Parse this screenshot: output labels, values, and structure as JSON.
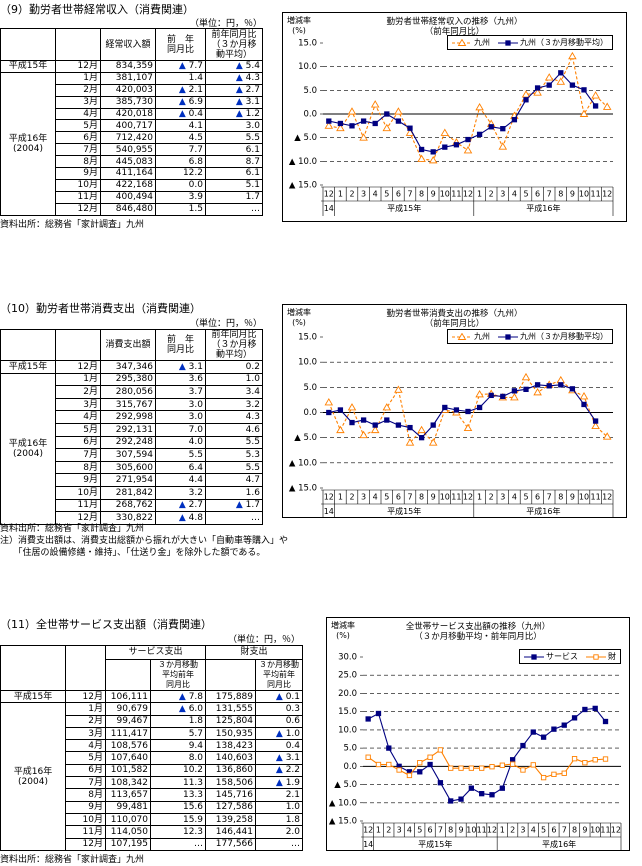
{
  "sections": [
    {
      "title": "（9）勤労者世帯経常収入（消費関連）",
      "unit": "（単位：円，％）",
      "table": {
        "headers": [
          "経常収入額",
          "前　年\n同月比",
          "前年同月比\n（３か月移\n動平均）"
        ],
        "groups": [
          {
            "label": "平成15年",
            "rows": [
              [
                "12月",
                "834,359",
                "▲ 7.7",
                "▲ 5.4"
              ]
            ]
          },
          {
            "label": "平成16年\n(2004)",
            "rows": [
              [
                "1月",
                "381,107",
                "1.4",
                "▲ 4.3"
              ],
              [
                "2月",
                "420,003",
                "▲ 2.1",
                "▲ 2.7"
              ],
              [
                "3月",
                "385,730",
                "▲ 6.9",
                "▲ 3.1"
              ],
              [
                "4月",
                "420,018",
                "▲ 0.4",
                "▲ 1.2"
              ],
              [
                "5月",
                "400,717",
                "4.1",
                "3.0"
              ],
              [
                "6月",
                "712,420",
                "4.5",
                "5.5"
              ],
              [
                "7月",
                "540,955",
                "7.7",
                "6.1"
              ],
              [
                "8月",
                "445,083",
                "6.8",
                "8.7"
              ],
              [
                "9月",
                "411,164",
                "12.2",
                "6.1"
              ],
              [
                "10月",
                "422,168",
                "0.0",
                "5.1"
              ],
              [
                "11月",
                "400,494",
                "3.9",
                "1.7"
              ],
              [
                "12月",
                "846,480",
                "1.5",
                "…"
              ]
            ]
          }
        ]
      },
      "source": "資料出所：総務省「家計調査」九州",
      "chart": {
        "type": "line",
        "title": "勤労者世帯経常収入の推移（九州）\n（前年同月比）",
        "y_label": "増減率\n(%)",
        "categories": [
          "12",
          "1",
          "2",
          "3",
          "4",
          "5",
          "6",
          "7",
          "8",
          "9",
          "10",
          "11",
          "12",
          "1",
          "2",
          "3",
          "4",
          "5",
          "6",
          "7",
          "8",
          "9",
          "10",
          "11",
          "12"
        ],
        "x_groups": [
          "14",
          "平成15年",
          "平成16年"
        ],
        "ylim": [
          -15,
          15
        ],
        "yticks": [
          {
            "value": 15,
            "label": "15.0"
          },
          {
            "value": 10,
            "label": "10.0"
          },
          {
            "value": 5,
            "label": "5.0"
          },
          {
            "value": 0,
            "label": "0.0"
          },
          {
            "value": -5,
            "label": "▲ 5.0"
          },
          {
            "value": -10,
            "label": "▲ 10.0"
          },
          {
            "value": -15,
            "label": "▲ 15.0"
          }
        ],
        "grid": true,
        "legend": "top-right",
        "series": [
          {
            "name": "九州",
            "color": "#ff8000",
            "marker": "triangle-open",
            "dashed": true,
            "values": [
              -2.5,
              -3,
              0.5,
              -5,
              2,
              -3,
              0.5,
              -4,
              -9.5,
              -9.8,
              -4,
              -6,
              -7.7,
              1.4,
              -2.1,
              -6.9,
              -0.4,
              4.1,
              4.5,
              7.7,
              6.8,
              12.2,
              0.0,
              3.9,
              1.5
            ]
          },
          {
            "name": "九州（３か月移動平均）",
            "color": "#000080",
            "marker": "square",
            "dashed": false,
            "values": [
              -1.5,
              -2,
              -2.5,
              -1.5,
              -2,
              0,
              -1.5,
              -3,
              -7.5,
              -8,
              -7,
              -6.5,
              -5.4,
              -4.3,
              -2.7,
              -3.1,
              -1.2,
              3.0,
              5.5,
              6.1,
              8.7,
              6.1,
              5.1,
              1.7,
              null
            ]
          }
        ]
      }
    },
    {
      "title": "（10）勤労者世帯消費支出（消費関連）",
      "unit": "（単位：円，％）",
      "table": {
        "headers": [
          "消費支出額",
          "前　年\n同月比",
          "前年同月比\n（３か月移\n動平均）"
        ],
        "groups": [
          {
            "label": "平成15年",
            "rows": [
              [
                "12月",
                "347,346",
                "▲ 3.1",
                "0.2"
              ]
            ]
          },
          {
            "label": "平成16年\n(2004)",
            "rows": [
              [
                "1月",
                "295,380",
                "3.6",
                "1.0"
              ],
              [
                "2月",
                "280,056",
                "3.7",
                "3.4"
              ],
              [
                "3月",
                "315,767",
                "3.0",
                "3.2"
              ],
              [
                "4月",
                "292,998",
                "3.0",
                "4.3"
              ],
              [
                "5月",
                "292,131",
                "7.0",
                "4.6"
              ],
              [
                "6月",
                "292,248",
                "4.0",
                "5.5"
              ],
              [
                "7月",
                "307,594",
                "5.5",
                "5.3"
              ],
              [
                "8月",
                "305,600",
                "6.4",
                "5.5"
              ],
              [
                "9月",
                "271,954",
                "4.4",
                "4.7"
              ],
              [
                "10月",
                "281,842",
                "3.2",
                "1.6"
              ],
              [
                "11月",
                "268,762",
                "▲ 2.7",
                "▲ 1.7"
              ],
              [
                "12月",
                "330,822",
                "▲ 4.8",
                "…"
              ]
            ]
          }
        ]
      },
      "source": "資料出所：総務省「家計調査」九州",
      "notes": [
        "注）消費支出額は、消費支出総額から振れが大きい「自動車等購入」や",
        "　　「住居の設備修繕・維持」、「仕送り金」を除外した額である。"
      ],
      "chart": {
        "type": "line",
        "title": "勤労者世帯消費支出の推移（九州）\n（前年同月比）",
        "y_label": "増減率\n(%)",
        "categories": [
          "12",
          "1",
          "2",
          "3",
          "4",
          "5",
          "6",
          "7",
          "8",
          "9",
          "10",
          "11",
          "12",
          "1",
          "2",
          "3",
          "4",
          "5",
          "6",
          "7",
          "8",
          "9",
          "10",
          "11",
          "12"
        ],
        "x_groups": [
          "14",
          "平成15年",
          "平成16年"
        ],
        "ylim": [
          -15,
          15
        ],
        "yticks": [
          {
            "value": 15,
            "label": "15.0"
          },
          {
            "value": 10,
            "label": "10.0"
          },
          {
            "value": 5,
            "label": "5.0"
          },
          {
            "value": 0,
            "label": "0.0"
          },
          {
            "value": -5,
            "label": "▲ 5.0"
          },
          {
            "value": -10,
            "label": "▲ 10.0"
          },
          {
            "value": -15,
            "label": "▲ 15.0"
          }
        ],
        "grid": true,
        "legend": "top-right",
        "series": [
          {
            "name": "九州",
            "color": "#ff8000",
            "marker": "triangle-open",
            "dashed": true,
            "values": [
              2,
              -3.5,
              1,
              -4.5,
              -3.5,
              1,
              4.5,
              -6,
              -3.5,
              -6,
              0.5,
              0,
              -3.1,
              3.6,
              3.7,
              3.0,
              3.0,
              7.0,
              4.0,
              5.5,
              6.4,
              4.4,
              3.2,
              -2.7,
              -4.8
            ]
          },
          {
            "name": "九州（３か月移動平均）",
            "color": "#000080",
            "marker": "square",
            "dashed": false,
            "values": [
              0,
              0.5,
              -2,
              -1.5,
              -2.5,
              -1.5,
              -2.5,
              -3,
              -5,
              -2.5,
              1,
              0.5,
              0.2,
              1.0,
              3.4,
              3.2,
              4.3,
              4.6,
              5.5,
              5.3,
              5.5,
              4.7,
              1.6,
              -1.7,
              null
            ]
          }
        ]
      }
    },
    {
      "title": "（11）全世帯サービス支出額（消費関連）",
      "unit": "（単位：円，％）",
      "table": {
        "header_groups": [
          {
            "name": "サービス支出",
            "sub": "３か月移動\n平均前年\n同月比"
          },
          {
            "name": "財支出",
            "sub": "３か月移動\n平均前年\n同月比"
          }
        ],
        "groups": [
          {
            "label": "平成15年",
            "rows": [
              [
                "12月",
                "106,111",
                "▲ 7.8",
                "175,889",
                "▲ 0.1"
              ]
            ]
          },
          {
            "label": "平成16年\n(2004)",
            "rows": [
              [
                "1月",
                "90,679",
                "▲ 6.0",
                "131,555",
                "0.3"
              ],
              [
                "2月",
                "99,467",
                "1.8",
                "125,804",
                "0.6"
              ],
              [
                "3月",
                "111,417",
                "5.7",
                "150,935",
                "▲ 1.0"
              ],
              [
                "4月",
                "108,576",
                "9.4",
                "138,423",
                "0.4"
              ],
              [
                "5月",
                "107,640",
                "8.0",
                "140,603",
                "▲ 3.1"
              ],
              [
                "6月",
                "101,582",
                "10.2",
                "136,860",
                "▲ 2.2"
              ],
              [
                "7月",
                "108,342",
                "11.3",
                "158,506",
                "▲ 1.9"
              ],
              [
                "8月",
                "113,657",
                "13.3",
                "145,716",
                "2.1"
              ],
              [
                "9月",
                "99,481",
                "15.6",
                "127,586",
                "1.0"
              ],
              [
                "10月",
                "110,070",
                "15.9",
                "139,258",
                "1.8"
              ],
              [
                "11月",
                "114,050",
                "12.3",
                "146,441",
                "2.0"
              ],
              [
                "12月",
                "107,195",
                "…",
                "177,566",
                "…"
              ]
            ]
          }
        ]
      },
      "source": "資料出所：総務省「家計調査」九州",
      "chart": {
        "type": "line",
        "title": "全世帯サービス支出額の推移（九州）\n（３か月移動平均・前年同月比）",
        "y_label": "増減率\n(%)",
        "categories": [
          "12",
          "1",
          "2",
          "3",
          "4",
          "5",
          "6",
          "7",
          "8",
          "9",
          "10",
          "11",
          "12",
          "1",
          "2",
          "3",
          "4",
          "5",
          "6",
          "7",
          "8",
          "9",
          "10",
          "11",
          "12"
        ],
        "x_groups": [
          "14",
          "平成15年",
          "平成16年"
        ],
        "ylim": [
          -15,
          30
        ],
        "yticks": [
          {
            "value": 30,
            "label": "30.0"
          },
          {
            "value": 25,
            "label": "25.0"
          },
          {
            "value": 20,
            "label": "20.0"
          },
          {
            "value": 15,
            "label": "15.0"
          },
          {
            "value": 10,
            "label": "10.0"
          },
          {
            "value": 5,
            "label": "5.0"
          },
          {
            "value": 0,
            "label": "0.0"
          },
          {
            "value": -5,
            "label": "▲ 5.0"
          },
          {
            "value": -10,
            "label": "▲ 10.0"
          },
          {
            "value": -15,
            "label": "▲ 15.0"
          }
        ],
        "grid": true,
        "legend": "top-right",
        "series": [
          {
            "name": "サービス",
            "color": "#000080",
            "marker": "square",
            "dashed": false,
            "values": [
              13,
              14.5,
              5,
              0,
              -1.5,
              -1.5,
              0.5,
              -4.5,
              -9.5,
              -9,
              -6,
              -7.5,
              -7.8,
              -6.0,
              1.8,
              5.7,
              9.4,
              8.0,
              10.2,
              11.3,
              13.3,
              15.6,
              15.9,
              12.3,
              null
            ]
          },
          {
            "name": "財",
            "color": "#ff8000",
            "marker": "square-open",
            "dashed": false,
            "values": [
              2.5,
              0.5,
              0.5,
              -1,
              -2.5,
              1,
              2.5,
              4.5,
              -0.5,
              -0.5,
              -0.5,
              -0.5,
              -0.1,
              0.3,
              0.6,
              -1.0,
              0.4,
              -3.1,
              -2.2,
              -1.9,
              2.1,
              1.0,
              1.8,
              2.0,
              null
            ]
          }
        ]
      }
    }
  ]
}
